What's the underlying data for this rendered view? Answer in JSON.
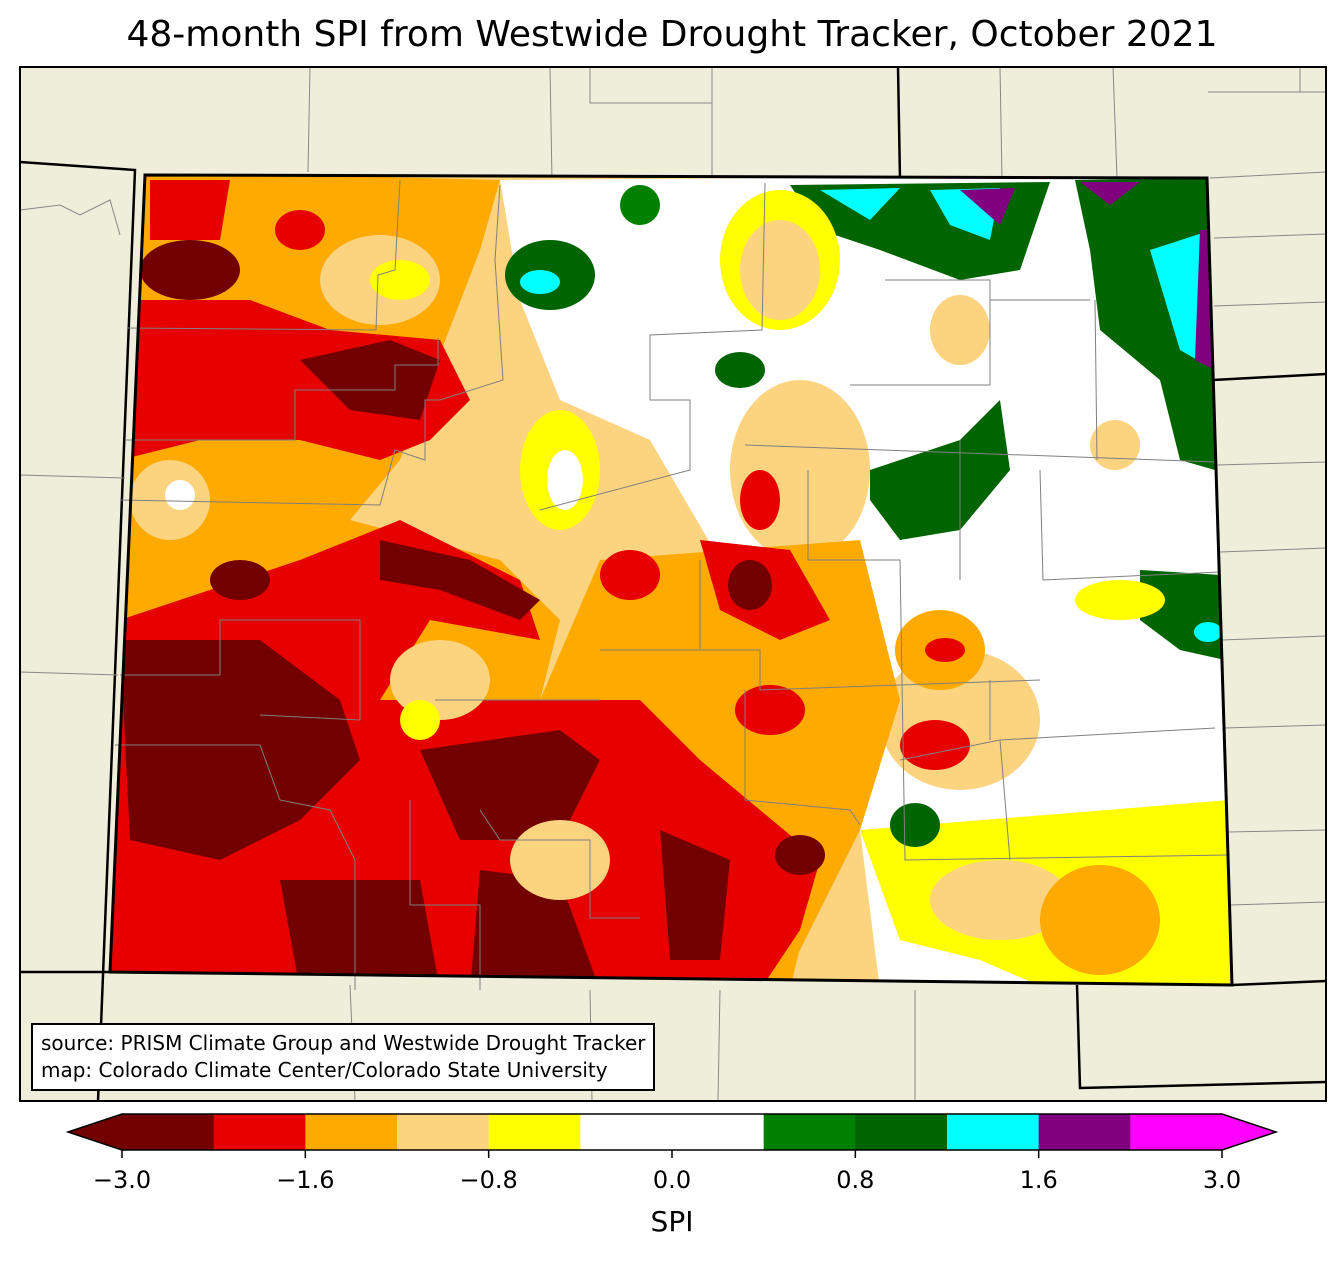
{
  "title": "48-month SPI from Westwide Drought Tracker, October 2021",
  "credits": {
    "source": "source: PRISM Climate Group and Westwide Drought Tracker",
    "map": "map: Colorado Climate Center/Colorado State University"
  },
  "colorbar": {
    "label": "SPI",
    "ticks": [
      "−3.0",
      "−1.6",
      "−0.8",
      "0.0",
      "0.8",
      "1.6",
      "3.0"
    ],
    "tick_values": [
      -3.0,
      -1.6,
      -0.8,
      0.0,
      0.8,
      1.6,
      3.0
    ],
    "levels": [
      -3.0,
      -2.0,
      -1.6,
      -1.3,
      -0.8,
      -0.5,
      0.0,
      0.5,
      0.8,
      1.3,
      1.6,
      2.0,
      3.0
    ],
    "colors": [
      "#730000",
      "#e60000",
      "#ffaa00",
      "#fcd37f",
      "#ffff00",
      "#ffffff",
      "#ffffff",
      "#008000",
      "#006400",
      "#00ffff",
      "#800080",
      "#ff00ff"
    ],
    "extend": "both"
  },
  "map_colors": {
    "land": "#efeedb",
    "state_border": "#000000",
    "county_border": "#808080"
  }
}
